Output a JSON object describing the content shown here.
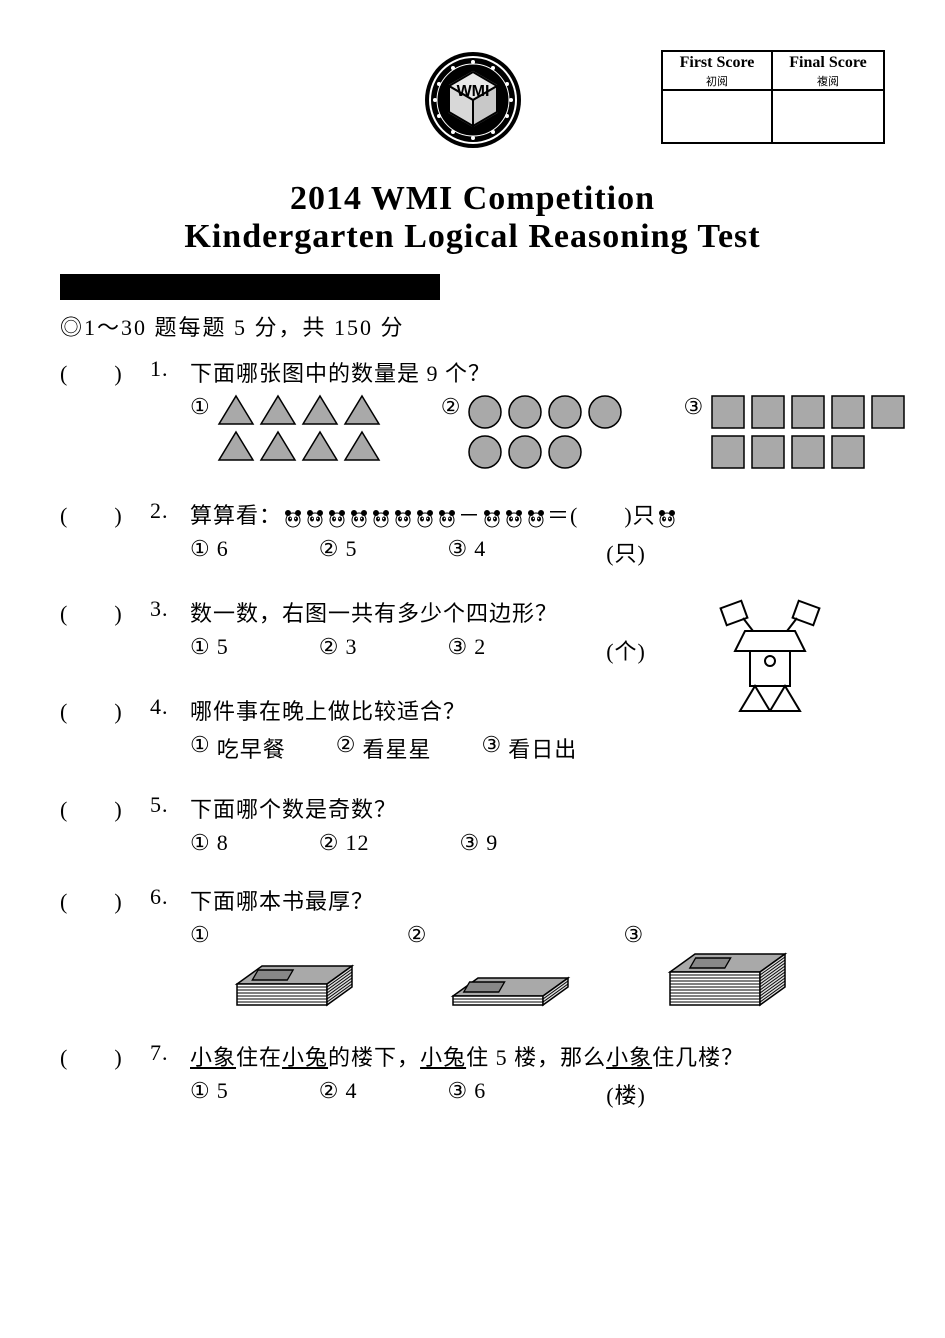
{
  "score": {
    "first_label_en": "First Score",
    "first_label_cn": "初阅",
    "final_label_en": "Final Score",
    "final_label_cn": "複阅"
  },
  "title_line1": "2014  WMI  Competition",
  "title_line2": "Kindergarten  Logical  Reasoning  Test",
  "instruction": "◎1～30 题每题 5 分，共 150 分",
  "blank_template": "(　　)",
  "option_markers": [
    "①",
    "②",
    "③"
  ],
  "q1": {
    "num": "1.",
    "text": "下面哪张图中的数量是 9 个？",
    "opt1_rows": [
      4,
      4
    ],
    "opt2_rows": [
      4,
      3
    ],
    "opt3_rows": [
      5,
      4
    ],
    "shape_fill": "#a9a9a9",
    "shape_stroke": "#000000"
  },
  "q2": {
    "num": "2.",
    "text_prefix": "算算看：",
    "minus": "－",
    "equals": "＝(　　)只",
    "left_count": 8,
    "right_count": 3,
    "opts": [
      "6",
      "5",
      "4"
    ],
    "unit": "(只)"
  },
  "q3": {
    "num": "3.",
    "text": "数一数，右图一共有多少个四边形？",
    "opts": [
      "5",
      "3",
      "2"
    ],
    "unit": "(个)"
  },
  "q4": {
    "num": "4.",
    "text": "哪件事在晚上做比较适合？",
    "opts": [
      "吃早餐",
      "看星星",
      "看日出"
    ]
  },
  "q5": {
    "num": "5.",
    "text": "下面哪个数是奇数？",
    "opts": [
      "8",
      "12",
      "9"
    ]
  },
  "q6": {
    "num": "6.",
    "text": "下面哪本书最厚？",
    "book_fill": "#a9a9a9",
    "book_stroke": "#000000",
    "thicknesses": [
      7,
      3,
      11
    ]
  },
  "q7": {
    "num": "7.",
    "text_parts": [
      "小象",
      "住在",
      "小兔",
      "的楼下，",
      "小兔",
      "住 5 楼，那么",
      "小象",
      "住几楼？"
    ],
    "opts": [
      "5",
      "4",
      "6"
    ],
    "unit": "(楼)"
  },
  "colors": {
    "text": "#000000",
    "bg": "#ffffff",
    "shape_fill": "#a9a9a9"
  }
}
